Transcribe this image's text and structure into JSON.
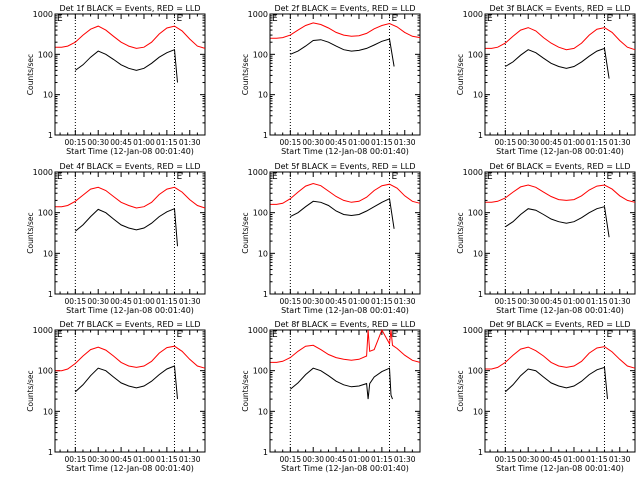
{
  "figure": {
    "colors": {
      "events": "#000000",
      "lld": "#ff0000",
      "axis": "#000000",
      "marker": "#000000",
      "background": "#ffffff"
    }
  },
  "chart_data": [
    {
      "type": "line",
      "title": "Det 1f BLACK = Events, RED = LLD",
      "xlabel": "Start Time (12-Jan-08 00:01:40)",
      "ylabel": "Counts/sec",
      "xticks": [
        "00:15",
        "00:30",
        "00:45",
        "01:00",
        "01:15",
        "01:30"
      ],
      "yticks": [
        "1",
        "10",
        "100",
        "1000"
      ],
      "ylim": [
        1,
        1000
      ],
      "yscale": "log",
      "x_range_min": [
        1.67,
        100
      ],
      "vlines_min": [
        15,
        80
      ],
      "edge_labels": [
        "E",
        "E"
      ],
      "series": [
        {
          "name": "Events",
          "color": "#000000",
          "x": [
            15,
            20,
            25,
            30,
            35,
            40,
            45,
            50,
            55,
            60,
            65,
            70,
            75,
            80,
            82
          ],
          "y": [
            40,
            55,
            85,
            120,
            100,
            75,
            55,
            45,
            40,
            45,
            60,
            85,
            110,
            130,
            20
          ]
        },
        {
          "name": "LLD",
          "color": "#ff0000",
          "x": [
            2,
            6,
            10,
            15,
            20,
            25,
            30,
            35,
            40,
            45,
            50,
            55,
            60,
            65,
            70,
            75,
            80,
            85,
            90,
            95,
            100
          ],
          "y": [
            150,
            150,
            160,
            200,
            300,
            420,
            500,
            400,
            280,
            200,
            160,
            140,
            150,
            200,
            320,
            450,
            500,
            380,
            240,
            160,
            140
          ]
        }
      ]
    },
    {
      "type": "line",
      "title": "Det 2f BLACK = Events, RED = LLD",
      "xlabel": "Start Time (12-Jan-08 00:01:40)",
      "ylabel": "Counts/sec",
      "xticks": [
        "00:15",
        "00:30",
        "00:45",
        "01:00",
        "01:15",
        "01:30"
      ],
      "yticks": [
        "1",
        "10",
        "100",
        "1000"
      ],
      "ylim": [
        1,
        1000
      ],
      "yscale": "log",
      "x_range_min": [
        1.67,
        100
      ],
      "vlines_min": [
        15,
        80
      ],
      "edge_labels": [
        "E",
        "E"
      ],
      "series": [
        {
          "name": "Events",
          "color": "#000000",
          "x": [
            15,
            20,
            25,
            30,
            35,
            40,
            45,
            50,
            55,
            60,
            65,
            70,
            75,
            80,
            83
          ],
          "y": [
            100,
            120,
            160,
            220,
            230,
            200,
            160,
            130,
            120,
            125,
            140,
            170,
            210,
            240,
            50
          ]
        },
        {
          "name": "LLD",
          "color": "#ff0000",
          "x": [
            2,
            6,
            10,
            15,
            20,
            25,
            30,
            35,
            40,
            45,
            50,
            55,
            60,
            65,
            70,
            75,
            80,
            85,
            90,
            95,
            100
          ],
          "y": [
            250,
            250,
            260,
            300,
            400,
            520,
            600,
            550,
            450,
            350,
            300,
            280,
            290,
            330,
            430,
            520,
            580,
            480,
            350,
            280,
            260
          ]
        }
      ]
    },
    {
      "type": "line",
      "title": "Det 3f BLACK = Events, RED = LLD",
      "xlabel": "Start Time (12-Jan-08 00:01:40)",
      "ylabel": "Counts/sec",
      "xticks": [
        "00:15",
        "00:30",
        "00:45",
        "01:00",
        "01:15",
        "01:30"
      ],
      "yticks": [
        "1",
        "10",
        "100",
        "1000"
      ],
      "ylim": [
        1,
        1000
      ],
      "yscale": "log",
      "x_range_min": [
        1.67,
        100
      ],
      "vlines_min": [
        15,
        80
      ],
      "edge_labels": [
        "E",
        "E"
      ],
      "series": [
        {
          "name": "Events",
          "color": "#000000",
          "x": [
            15,
            20,
            25,
            30,
            35,
            40,
            45,
            50,
            55,
            60,
            65,
            70,
            75,
            80,
            83
          ],
          "y": [
            50,
            65,
            95,
            130,
            110,
            80,
            60,
            50,
            45,
            50,
            65,
            90,
            120,
            140,
            25
          ]
        },
        {
          "name": "LLD",
          "color": "#ff0000",
          "x": [
            2,
            6,
            10,
            15,
            20,
            25,
            30,
            35,
            40,
            45,
            50,
            55,
            60,
            65,
            70,
            75,
            80,
            85,
            90,
            95,
            100
          ],
          "y": [
            140,
            140,
            150,
            190,
            280,
            400,
            460,
            380,
            260,
            190,
            150,
            130,
            140,
            190,
            300,
            420,
            460,
            350,
            220,
            150,
            130
          ]
        }
      ]
    },
    {
      "type": "line",
      "title": "Det 4f BLACK = Events, RED = LLD",
      "xlabel": "Start Time (12-Jan-08 00:01:40)",
      "ylabel": "Counts/sec",
      "xticks": [
        "00:15",
        "00:30",
        "00:45",
        "01:00",
        "01:15",
        "01:30"
      ],
      "yticks": [
        "1",
        "10",
        "100",
        "1000"
      ],
      "ylim": [
        1,
        1000
      ],
      "yscale": "log",
      "x_range_min": [
        1.67,
        100
      ],
      "vlines_min": [
        15,
        80
      ],
      "edge_labels": [
        "E",
        "E"
      ],
      "series": [
        {
          "name": "Events",
          "color": "#000000",
          "x": [
            15,
            20,
            25,
            30,
            35,
            40,
            45,
            50,
            55,
            60,
            65,
            70,
            75,
            80,
            82
          ],
          "y": [
            35,
            50,
            80,
            120,
            100,
            70,
            50,
            42,
            38,
            42,
            55,
            80,
            105,
            125,
            15
          ]
        },
        {
          "name": "LLD",
          "color": "#ff0000",
          "x": [
            2,
            6,
            10,
            15,
            20,
            25,
            30,
            35,
            40,
            45,
            50,
            55,
            60,
            65,
            70,
            75,
            80,
            85,
            90,
            95,
            100
          ],
          "y": [
            140,
            140,
            150,
            190,
            270,
            380,
            420,
            350,
            250,
            180,
            150,
            130,
            140,
            180,
            280,
            380,
            420,
            320,
            210,
            150,
            130
          ]
        }
      ]
    },
    {
      "type": "line",
      "title": "Det 5f BLACK = Events, RED = LLD",
      "xlabel": "Start Time (12-Jan-08 00:01:40)",
      "ylabel": "Counts/sec",
      "xticks": [
        "00:15",
        "00:30",
        "00:45",
        "01:00",
        "01:15",
        "01:30"
      ],
      "yticks": [
        "1",
        "10",
        "100",
        "1000"
      ],
      "ylim": [
        1,
        1000
      ],
      "yscale": "log",
      "x_range_min": [
        1.67,
        100
      ],
      "vlines_min": [
        15,
        80
      ],
      "edge_labels": [
        "E",
        "E"
      ],
      "series": [
        {
          "name": "Events",
          "color": "#000000",
          "x": [
            15,
            20,
            25,
            30,
            35,
            40,
            45,
            50,
            55,
            60,
            65,
            70,
            75,
            80,
            83
          ],
          "y": [
            80,
            100,
            140,
            190,
            180,
            150,
            110,
            90,
            85,
            90,
            110,
            140,
            180,
            220,
            40
          ]
        },
        {
          "name": "LLD",
          "color": "#ff0000",
          "x": [
            2,
            6,
            10,
            15,
            20,
            25,
            30,
            35,
            40,
            45,
            50,
            55,
            60,
            65,
            70,
            75,
            80,
            85,
            90,
            95,
            100
          ],
          "y": [
            160,
            160,
            170,
            220,
            320,
            450,
            520,
            460,
            340,
            250,
            200,
            180,
            190,
            240,
            350,
            460,
            500,
            400,
            260,
            190,
            170
          ]
        }
      ]
    },
    {
      "type": "line",
      "title": "Det 6f BLACK = Events, RED = LLD",
      "xlabel": "Start Time (12-Jan-08 00:01:40)",
      "ylabel": "Counts/sec",
      "xticks": [
        "00:15",
        "00:30",
        "00:45",
        "01:00",
        "01:15",
        "01:30"
      ],
      "yticks": [
        "1",
        "10",
        "100",
        "1000"
      ],
      "ylim": [
        1,
        1000
      ],
      "yscale": "log",
      "x_range_min": [
        1.67,
        100
      ],
      "vlines_min": [
        15,
        80
      ],
      "edge_labels": [
        "E",
        "E"
      ],
      "series": [
        {
          "name": "Events",
          "color": "#000000",
          "x": [
            15,
            20,
            25,
            30,
            35,
            40,
            45,
            50,
            55,
            60,
            65,
            70,
            75,
            80,
            83
          ],
          "y": [
            45,
            60,
            90,
            125,
            115,
            90,
            70,
            60,
            55,
            60,
            75,
            100,
            125,
            140,
            25
          ]
        },
        {
          "name": "LLD",
          "color": "#ff0000",
          "x": [
            2,
            6,
            10,
            15,
            20,
            25,
            30,
            35,
            40,
            45,
            50,
            55,
            60,
            65,
            70,
            75,
            80,
            85,
            90,
            95,
            100
          ],
          "y": [
            180,
            180,
            190,
            230,
            320,
            430,
            480,
            420,
            320,
            250,
            210,
            200,
            210,
            260,
            360,
            450,
            480,
            380,
            260,
            200,
            180
          ]
        }
      ]
    },
    {
      "type": "line",
      "title": "Det 7f BLACK = Events, RED = LLD",
      "xlabel": "Start Time (12-Jan-08 00:01:40)",
      "ylabel": "Counts/sec",
      "xticks": [
        "00:15",
        "00:30",
        "00:45",
        "01:00",
        "01:15",
        "01:30"
      ],
      "yticks": [
        "1",
        "10",
        "100",
        "1000"
      ],
      "ylim": [
        1,
        1000
      ],
      "yscale": "log",
      "x_range_min": [
        1.67,
        100
      ],
      "vlines_min": [
        15,
        80
      ],
      "edge_labels": [
        "E",
        "E"
      ],
      "series": [
        {
          "name": "Events",
          "color": "#000000",
          "x": [
            15,
            20,
            25,
            30,
            35,
            40,
            45,
            50,
            55,
            60,
            65,
            70,
            75,
            80,
            82
          ],
          "y": [
            30,
            45,
            75,
            115,
            100,
            70,
            50,
            42,
            38,
            42,
            55,
            80,
            110,
            130,
            20
          ]
        },
        {
          "name": "LLD",
          "color": "#ff0000",
          "x": [
            2,
            6,
            10,
            15,
            20,
            25,
            30,
            35,
            40,
            45,
            50,
            55,
            60,
            65,
            70,
            75,
            80,
            85,
            90,
            95,
            100
          ],
          "y": [
            100,
            100,
            110,
            150,
            230,
            330,
            380,
            320,
            230,
            160,
            130,
            120,
            130,
            170,
            270,
            370,
            400,
            300,
            190,
            130,
            115
          ]
        }
      ]
    },
    {
      "type": "line",
      "title": "Det 8f BLACK = Events, RED = LLD",
      "xlabel": "Start Time (12-Jan-08 00:01:40)",
      "ylabel": "Counts/sec",
      "xticks": [
        "00:15",
        "00:30",
        "00:45",
        "01:00",
        "01:15",
        "01:30"
      ],
      "yticks": [
        "1",
        "10",
        "100",
        "1000"
      ],
      "ylim": [
        1,
        1000
      ],
      "yscale": "log",
      "x_range_min": [
        1.67,
        100
      ],
      "vlines_min": [
        15,
        80
      ],
      "edge_labels": [
        "E",
        "E"
      ],
      "series": [
        {
          "name": "Events",
          "color": "#000000",
          "x": [
            15,
            20,
            25,
            30,
            35,
            40,
            45,
            50,
            55,
            60,
            65,
            66,
            67,
            70,
            75,
            80,
            81,
            82
          ],
          "y": [
            35,
            50,
            80,
            115,
            100,
            75,
            55,
            45,
            40,
            42,
            48,
            20,
            48,
            70,
            95,
            115,
            25,
            20
          ]
        },
        {
          "name": "LLD",
          "color": "#ff0000",
          "x": [
            2,
            6,
            10,
            15,
            20,
            25,
            30,
            35,
            40,
            45,
            50,
            55,
            60,
            65,
            66,
            67,
            70,
            75,
            80,
            81,
            82,
            85,
            90,
            95,
            100
          ],
          "y": [
            160,
            160,
            170,
            210,
            300,
            400,
            420,
            330,
            250,
            210,
            190,
            180,
            190,
            230,
            1000,
            300,
            330,
            1000,
            460,
            1000,
            420,
            350,
            240,
            180,
            160
          ]
        }
      ]
    },
    {
      "type": "line",
      "title": "Det 9f BLACK = Events, RED = LLD",
      "xlabel": "Start Time (12-Jan-08 00:01:40)",
      "ylabel": "Counts/sec",
      "xticks": [
        "00:15",
        "00:30",
        "00:45",
        "01:00",
        "01:15",
        "01:30"
      ],
      "yticks": [
        "1",
        "10",
        "100",
        "1000"
      ],
      "ylim": [
        1,
        1000
      ],
      "yscale": "log",
      "x_range_min": [
        1.67,
        100
      ],
      "vlines_min": [
        15,
        80
      ],
      "edge_labels": [
        "E",
        "E"
      ],
      "series": [
        {
          "name": "Events",
          "color": "#000000",
          "x": [
            15,
            20,
            25,
            30,
            35,
            40,
            45,
            50,
            55,
            60,
            65,
            70,
            75,
            80,
            82
          ],
          "y": [
            30,
            45,
            75,
            110,
            100,
            70,
            50,
            42,
            38,
            42,
            55,
            80,
            105,
            120,
            20
          ]
        },
        {
          "name": "LLD",
          "color": "#ff0000",
          "x": [
            2,
            6,
            10,
            15,
            20,
            25,
            30,
            35,
            40,
            45,
            50,
            55,
            60,
            65,
            70,
            75,
            80,
            85,
            90,
            95,
            100
          ],
          "y": [
            110,
            110,
            120,
            160,
            240,
            340,
            380,
            310,
            230,
            160,
            130,
            120,
            130,
            170,
            270,
            360,
            390,
            290,
            190,
            130,
            115
          ]
        }
      ]
    }
  ]
}
